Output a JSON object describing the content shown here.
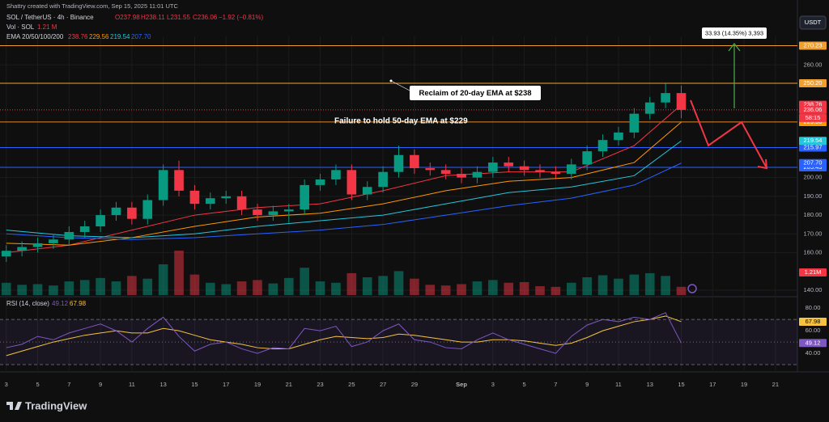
{
  "header": {
    "credit": "Shattry created with TradingView.com, Sep 15, 2025 11:01 UTC",
    "symbol": "SOL / TetherUS · 4h · Binance",
    "ohlc": {
      "open": "O237.98",
      "high": "H238.11",
      "low": "L231.55",
      "close": "C236.06",
      "change": "−1.92 (−0.81%)"
    },
    "volume_label": "Vol · SOL",
    "volume_value": "1.21 M",
    "ema_label": "EMA 20/50/100/200",
    "currency": "USDT"
  },
  "chart_data": {
    "type": "candlestick",
    "x": [
      0,
      1,
      2,
      3,
      4,
      5,
      6,
      7,
      8,
      9,
      10,
      11,
      12,
      13,
      14,
      15,
      16,
      17,
      18,
      19,
      20,
      21,
      22,
      23,
      24,
      25,
      26,
      27,
      28,
      29,
      30,
      31,
      32,
      33,
      34,
      35,
      36,
      37,
      38,
      39,
      40,
      41,
      42,
      43
    ],
    "xlim": [
      -0.4,
      50.4
    ],
    "xticks": [
      {
        "value": 0,
        "label": "3"
      },
      {
        "value": 2,
        "label": "5"
      },
      {
        "value": 4,
        "label": "7"
      },
      {
        "value": 6,
        "label": "9"
      },
      {
        "value": 8,
        "label": "11"
      },
      {
        "value": 10,
        "label": "13"
      },
      {
        "value": 12,
        "label": "15"
      },
      {
        "value": 14,
        "label": "17"
      },
      {
        "value": 16,
        "label": "19"
      },
      {
        "value": 18,
        "label": "21"
      },
      {
        "value": 20,
        "label": "23"
      },
      {
        "value": 22,
        "label": "25"
      },
      {
        "value": 24,
        "label": "27"
      },
      {
        "value": 26,
        "label": "29"
      },
      {
        "value": 29,
        "label": "Sep"
      },
      {
        "value": 31,
        "label": "3"
      },
      {
        "value": 33,
        "label": "5"
      },
      {
        "value": 35,
        "label": "7"
      },
      {
        "value": 37,
        "label": "9"
      },
      {
        "value": 39,
        "label": "11"
      },
      {
        "value": 41,
        "label": "13"
      },
      {
        "value": 43,
        "label": "15"
      },
      {
        "value": 45,
        "label": "17"
      },
      {
        "value": 47,
        "label": "19"
      },
      {
        "value": 49,
        "label": "21"
      }
    ],
    "open": [
      158,
      161,
      163,
      165,
      167,
      171,
      174,
      180,
      184,
      178,
      188,
      204,
      193,
      186,
      189,
      190,
      183,
      180,
      182,
      183,
      196,
      199,
      204,
      191,
      195,
      203,
      212,
      205,
      204,
      202,
      200,
      203,
      208,
      206,
      204,
      203,
      202,
      207,
      214,
      220,
      224,
      234,
      240,
      245
    ],
    "high": [
      164,
      166,
      168,
      170,
      174,
      177,
      183,
      187,
      187,
      191,
      207,
      209,
      196,
      192,
      193,
      193,
      186,
      185,
      186,
      199,
      202,
      207,
      207,
      198,
      206,
      217,
      215,
      208,
      207,
      205,
      206,
      211,
      211,
      209,
      207,
      206,
      210,
      217,
      223,
      227,
      237,
      243,
      250,
      249
    ],
    "low": [
      155,
      158,
      160,
      162,
      164,
      168,
      171,
      177,
      175,
      175,
      185,
      190,
      183,
      183,
      186,
      180,
      177,
      177,
      176,
      180,
      193,
      196,
      188,
      188,
      192,
      200,
      202,
      201,
      199,
      197,
      197,
      200,
      203,
      201,
      200,
      199,
      199,
      204,
      211,
      217,
      221,
      231,
      237,
      231.55
    ],
    "close": [
      161,
      163,
      165,
      167,
      171,
      174,
      180,
      184,
      178,
      188,
      204,
      193,
      186,
      189,
      190,
      183,
      180,
      182,
      183,
      196,
      199,
      204,
      191,
      195,
      203,
      212,
      205,
      204,
      202,
      200,
      203,
      208,
      206,
      204,
      203,
      202,
      207,
      214,
      220,
      224,
      234,
      240,
      245,
      236.06
    ],
    "volume": [
      1.8,
      1.5,
      1.6,
      1.4,
      2.0,
      2.2,
      2.5,
      2.0,
      2.8,
      2.4,
      4.5,
      6.5,
      3.0,
      1.8,
      1.6,
      2.0,
      2.2,
      1.7,
      2.5,
      4.0,
      2.0,
      1.8,
      3.2,
      2.6,
      2.8,
      3.5,
      2.4,
      1.5,
      1.4,
      1.6,
      2.0,
      2.2,
      1.8,
      1.9,
      1.3,
      1.2,
      1.8,
      2.6,
      2.9,
      2.4,
      3.0,
      3.2,
      2.8,
      1.21
    ],
    "volume_box": "1.21M",
    "up_color": "#089981",
    "down_color": "#f23645",
    "ylim": [
      137.4,
      275.2
    ],
    "yticks": [
      {
        "value": 140,
        "label": "140.00"
      },
      {
        "value": 160,
        "label": "160.00"
      },
      {
        "value": 170,
        "label": "170.00"
      },
      {
        "value": 180,
        "label": "180.00"
      },
      {
        "value": 190,
        "label": "190.00"
      },
      {
        "value": 200,
        "label": "200.00"
      },
      {
        "value": 260,
        "label": "260.00"
      }
    ],
    "grid": true,
    "ema_x": [
      0,
      4,
      8,
      12,
      16,
      20,
      24,
      28,
      32,
      36,
      40,
      43
    ],
    "ema": [
      {
        "color": "#f23645",
        "values": [
          160,
          164,
          172,
          180,
          184,
          186,
          193,
          201,
          203,
          203,
          217,
          238.76
        ],
        "last_label": "238.76"
      },
      {
        "color": "#ff9800",
        "values": [
          165,
          164,
          168,
          174,
          179,
          181,
          186,
          193,
          198,
          200,
          208,
          229.56
        ],
        "last_label": "229.56"
      },
      {
        "color": "#26c6da",
        "values": [
          172,
          169,
          168,
          170,
          174,
          177,
          180,
          186,
          192,
          195,
          201,
          219.54
        ],
        "last_label": "219.54"
      },
      {
        "color": "#2962ff",
        "values": [
          170,
          168,
          167,
          168,
          170,
          172,
          175,
          180,
          185,
          189,
          196,
          207.7
        ],
        "last_label": "207.70"
      }
    ],
    "levels": [
      {
        "value": 270.23,
        "label": "270.23",
        "color": "#f0a030"
      },
      {
        "value": 250.2,
        "label": "250.20",
        "color": "#f0a030"
      },
      {
        "value": 229.6,
        "label": "229.60",
        "color": "#e8862a"
      },
      {
        "value": 215.97,
        "label": "215.97",
        "color": "#2962ff"
      },
      {
        "value": 205.43,
        "label": "205.43",
        "color": "#2962ff"
      }
    ],
    "last_price": {
      "value": 236.06,
      "label": "236.06",
      "countdown": "58:15"
    },
    "annotations": {
      "reclaim": "Reclaim of  20-day EMA at $238",
      "failure": "Failure to hold 50-day EMA at $229",
      "measure": "33.93 (14.35%) 3,393"
    },
    "rsi": {
      "title": "RSI (14, close)",
      "values": [
        45,
        48,
        55,
        52,
        58,
        62,
        66,
        60,
        50,
        62,
        72,
        55,
        42,
        48,
        50,
        44,
        40,
        45,
        44,
        62,
        60,
        64,
        46,
        50,
        60,
        66,
        52,
        50,
        45,
        44,
        52,
        58,
        52,
        48,
        44,
        40,
        55,
        65,
        70,
        68,
        72,
        70,
        76,
        49.12
      ],
      "value_label": "49.12",
      "ma": [
        38,
        42,
        46,
        50,
        53,
        56,
        58,
        60,
        58,
        58,
        62,
        60,
        56,
        52,
        50,
        48,
        45,
        44,
        44,
        48,
        52,
        55,
        54,
        53,
        54,
        57,
        56,
        54,
        52,
        50,
        50,
        52,
        52,
        51,
        49,
        47,
        49,
        54,
        60,
        64,
        68,
        70,
        73,
        67.98
      ],
      "ma_label": "67.98",
      "color": "#7e57c2",
      "ma_color": "#f5c242",
      "ylim": [
        25,
        88
      ],
      "yticks": [
        {
          "value": 40,
          "label": "40.00"
        },
        {
          "value": 60,
          "label": "60.00"
        },
        {
          "value": 80,
          "label": "80.00"
        }
      ],
      "bands": [
        30,
        50,
        70
      ]
    }
  },
  "footer": {
    "brand": "TradingView"
  }
}
